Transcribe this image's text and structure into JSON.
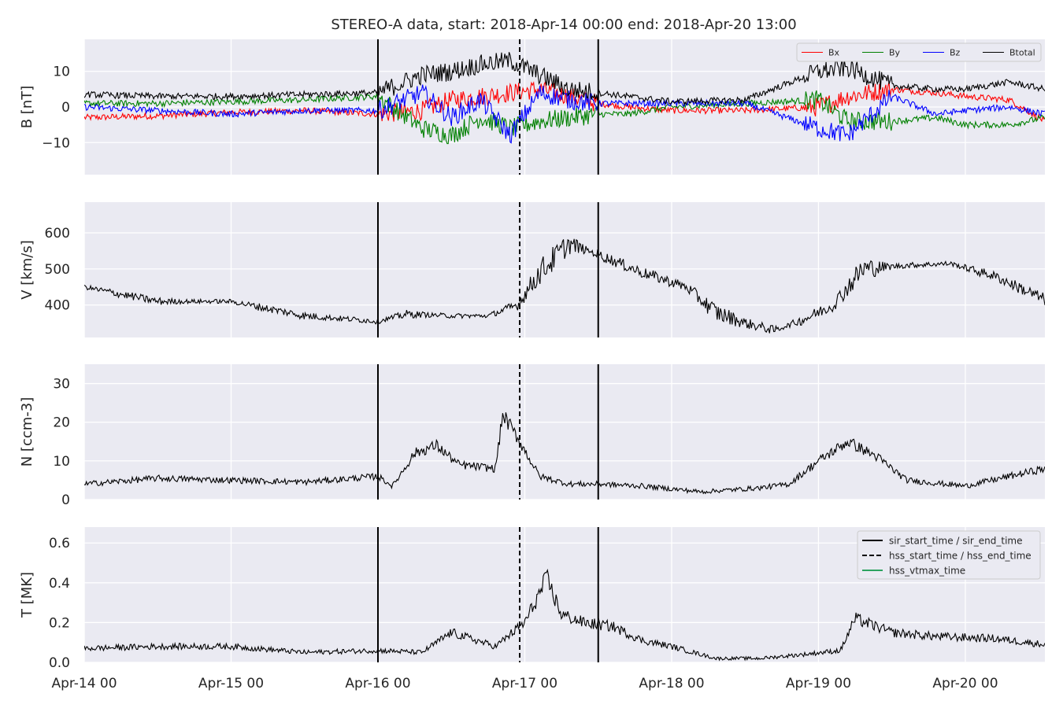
{
  "chart_data": {
    "type": "line",
    "title": "STEREO-A data, start: 2018-Apr-14 00:00  end: 2018-Apr-20 13:00",
    "x_range": [
      "2018-04-14 00:00",
      "2018-04-20 13:00"
    ],
    "x_ticks": [
      "Apr-14 00",
      "Apr-15 00",
      "Apr-16 00",
      "Apr-17 00",
      "Apr-18 00",
      "Apr-19 00",
      "Apr-20 00"
    ],
    "grid": true,
    "event_lines": [
      {
        "time": "2018-04-16 00:00",
        "style": "solid"
      },
      {
        "time": "2018-04-16 23:10",
        "style": "dashed"
      },
      {
        "time": "2018-04-17 12:00",
        "style": "solid"
      }
    ],
    "legend_bottom": {
      "placement": "top-right",
      "entries": [
        {
          "label": "sir_start_time / sir_end_time",
          "style": "solid",
          "color": "#000000"
        },
        {
          "label": "hss_start_time / hss_end_time",
          "style": "dashed",
          "color": "#000000"
        },
        {
          "label": "hss_vtmax_time",
          "style": "solid",
          "color": "#2ca25f"
        }
      ]
    },
    "panels": [
      {
        "ylabel": "B [nT]",
        "ylim": [
          -19,
          19
        ],
        "yticks": [
          -10,
          0,
          10
        ],
        "legend": {
          "placement": "top-right",
          "columns": 4
        },
        "series": [
          {
            "name": "Bx",
            "color": "#ff0000",
            "t": [
              0,
              0.5,
              1,
              1.5,
              2,
              2.3,
              2.5,
              2.7,
              2.9,
              3.1,
              3.3,
              3.5,
              3.7,
              4,
              4.5,
              5,
              5.2,
              5.5,
              5.8,
              6,
              6.3,
              6.54
            ],
            "values": [
              -3,
              -2.5,
              -1.5,
              -1,
              -2,
              -1,
              2,
              3,
              4,
              5,
              3,
              1,
              0,
              -1,
              -1,
              0,
              3,
              5,
              4,
              3,
              2,
              -4
            ]
          },
          {
            "name": "By",
            "color": "#008000",
            "t": [
              0,
              0.5,
              1,
              1.5,
              2,
              2.3,
              2.5,
              2.7,
              2.9,
              3.1,
              3.3,
              3.5,
              3.7,
              4,
              4.5,
              5,
              5.2,
              5.5,
              5.8,
              6,
              6.3,
              6.54
            ],
            "values": [
              1,
              1,
              1.5,
              2,
              3,
              -6,
              -8,
              -3,
              -6,
              -4,
              -3,
              -2,
              -2,
              0,
              1,
              2,
              -4,
              -4,
              -3,
              -5,
              -5,
              -3
            ]
          },
          {
            "name": "Bz",
            "color": "#0000ff",
            "t": [
              0,
              0.5,
              1,
              1.5,
              2,
              2.3,
              2.5,
              2.7,
              2.9,
              3.1,
              3.3,
              3.5,
              3.7,
              4,
              4.5,
              5,
              5.2,
              5.5,
              5.8,
              6,
              6.3,
              6.54
            ],
            "values": [
              0,
              -1,
              -2,
              -1,
              -1,
              4,
              -3,
              2,
              -8,
              4,
              2,
              1,
              1,
              1,
              1,
              -6,
              -8,
              3,
              -2,
              -1,
              0,
              -2
            ]
          },
          {
            "name": "Btotal",
            "color": "#000000",
            "t": [
              0,
              0.5,
              1,
              1.5,
              2,
              2.3,
              2.5,
              2.7,
              2.9,
              3.1,
              3.3,
              3.5,
              3.7,
              4,
              4.5,
              5,
              5.2,
              5.5,
              5.8,
              6,
              6.3,
              6.54
            ],
            "values": [
              3.5,
              3,
              3,
              3.5,
              4,
              9,
              10,
              12,
              13,
              9,
              5,
              4,
              3,
              1.5,
              2,
              10,
              11,
              6,
              5,
              5,
              7,
              5
            ]
          }
        ]
      },
      {
        "ylabel": "V [km/s]",
        "ylim": [
          310,
          685
        ],
        "yticks": [
          400,
          500,
          600
        ],
        "series": [
          {
            "name": "",
            "color": "#000000",
            "t": [
              0,
              0.5,
              1,
              1.5,
              2,
              2.2,
              2.5,
              2.75,
              2.95,
              3.1,
              3.3,
              3.5,
              3.8,
              4.1,
              4.3,
              4.5,
              4.7,
              4.9,
              5.1,
              5.3,
              5.6,
              5.9,
              6.2,
              6.54
            ],
            "values": [
              450,
              410,
              410,
              370,
              355,
              375,
              370,
              370,
              400,
              490,
              570,
              540,
              490,
              450,
              380,
              350,
              330,
              360,
              400,
              500,
              510,
              515,
              480,
              415
            ]
          }
        ]
      },
      {
        "ylabel": "N [ccm-3]",
        "ylim": [
          0,
          35
        ],
        "yticks": [
          0,
          10,
          20,
          30
        ],
        "series": [
          {
            "name": "",
            "color": "#000000",
            "t": [
              0,
              0.5,
              1,
              1.5,
              2,
              2.1,
              2.25,
              2.4,
              2.55,
              2.8,
              2.85,
              2.95,
              3.1,
              3.3,
              3.5,
              3.8,
              4.2,
              4.6,
              4.8,
              5,
              5.2,
              5.4,
              5.6,
              6,
              6.54
            ],
            "values": [
              4,
              5.5,
              5,
              4.5,
              6,
              3.5,
              12,
              14,
              9,
              8,
              22,
              16,
              6,
              4,
              4,
              3.5,
              2,
              3,
              4,
              10,
              15,
              11,
              5,
              3.5,
              8
            ]
          }
        ]
      },
      {
        "ylabel": "T [MK]",
        "ylim": [
          0,
          0.68
        ],
        "yticks": [
          0.0,
          0.2,
          0.4,
          0.6
        ],
        "series": [
          {
            "name": "",
            "color": "#000000",
            "t": [
              0,
              0.5,
              1,
              1.5,
              2,
              2.3,
              2.5,
              2.8,
              3,
              3.15,
              3.25,
              3.4,
              3.6,
              3.8,
              4,
              4.3,
              4.6,
              4.9,
              5.15,
              5.25,
              5.5,
              5.8,
              6.2,
              6.54
            ],
            "values": [
              0.07,
              0.08,
              0.08,
              0.05,
              0.06,
              0.05,
              0.15,
              0.08,
              0.2,
              0.42,
              0.24,
              0.2,
              0.18,
              0.11,
              0.08,
              0.02,
              0.02,
              0.04,
              0.06,
              0.22,
              0.15,
              0.13,
              0.12,
              0.09
            ]
          }
        ]
      }
    ]
  }
}
